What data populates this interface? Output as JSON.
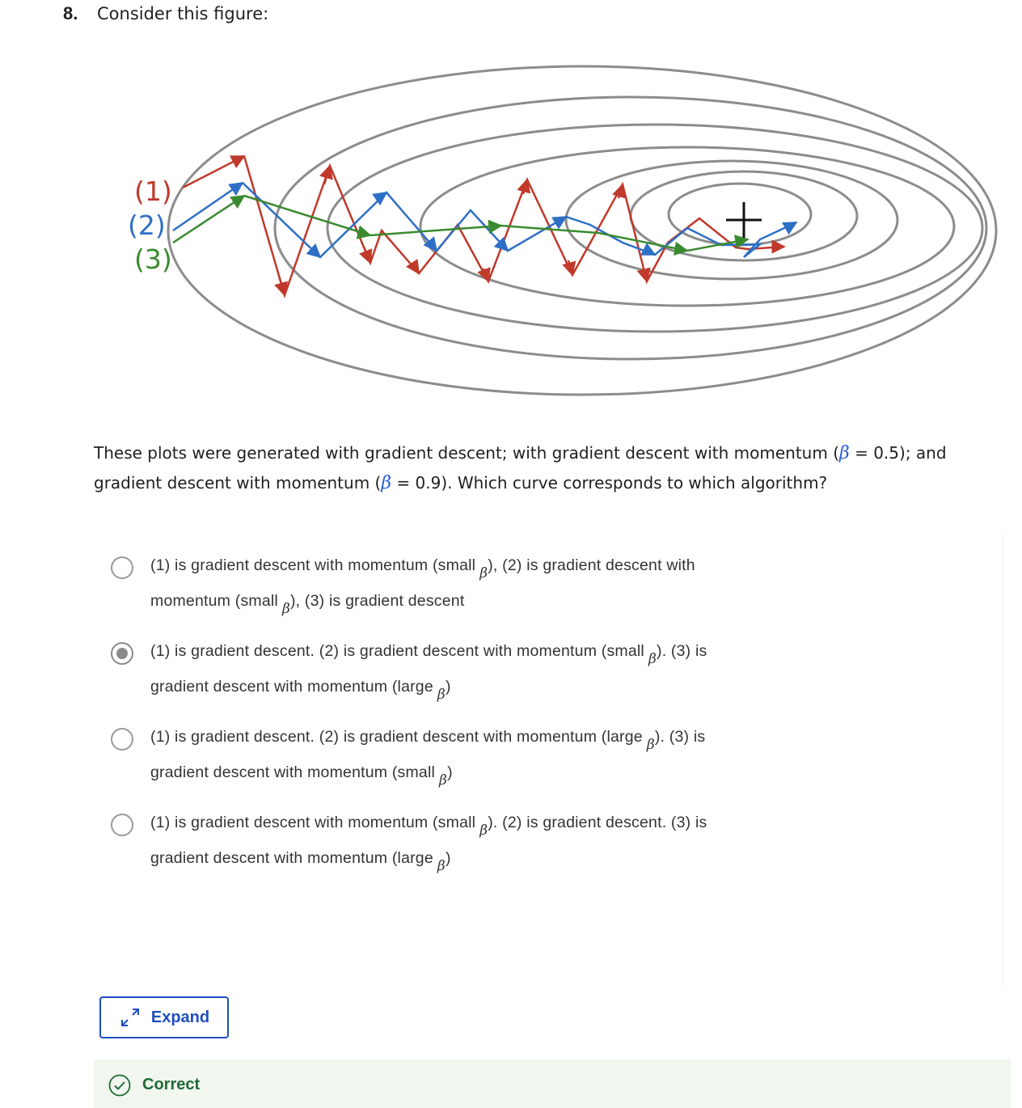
{
  "question": {
    "number": "8.",
    "lead": "Consider this figure:",
    "prompt_a": "These plots were generated with gradient descent; with gradient descent with momentum (",
    "prompt_b": " = 0.5); and gradient descent with momentum (",
    "prompt_c": " = 0.9). Which curve corresponds to which algorithm?",
    "beta_symbol": "β"
  },
  "figure": {
    "labels": [
      "(1)",
      "(2)",
      "(3)"
    ],
    "colors": {
      "curve1": "#c0392b",
      "curve2": "#2e6fc6",
      "curve3": "#3a8a2f",
      "contour": "#8c8c8c"
    },
    "minimum_marker": "+"
  },
  "options": [
    {
      "line1": "(1) is gradient descent with momentum (small",
      "beta1": "β",
      "line1_end": "), (2) is gradient descent with",
      "line2": "momentum (small",
      "beta2": "β",
      "line2_end": "), (3) is gradient descent",
      "selected": false
    },
    {
      "line1": "(1) is gradient descent. (2) is gradient descent with momentum (small",
      "beta1": "β",
      "line1_end": "). (3) is",
      "line2": "gradient descent with momentum (large",
      "beta2": "β",
      "line2_end": ")",
      "selected": true
    },
    {
      "line1": "(1) is gradient descent. (2) is gradient descent with momentum (large",
      "beta1": "β",
      "line1_end": "). (3) is",
      "line2": "gradient descent with momentum (small",
      "beta2": "β",
      "line2_end": ")",
      "selected": false
    },
    {
      "line1": "(1) is gradient descent with momentum (small",
      "beta1": "β",
      "line1_end": "). (2) is gradient descent. (3) is",
      "line2": "gradient descent with momentum (large",
      "beta2": "β",
      "line2_end": ")",
      "selected": false
    }
  ],
  "expand_label": "Expand",
  "feedback": {
    "label": "Correct",
    "icon": "check-circle-icon"
  }
}
